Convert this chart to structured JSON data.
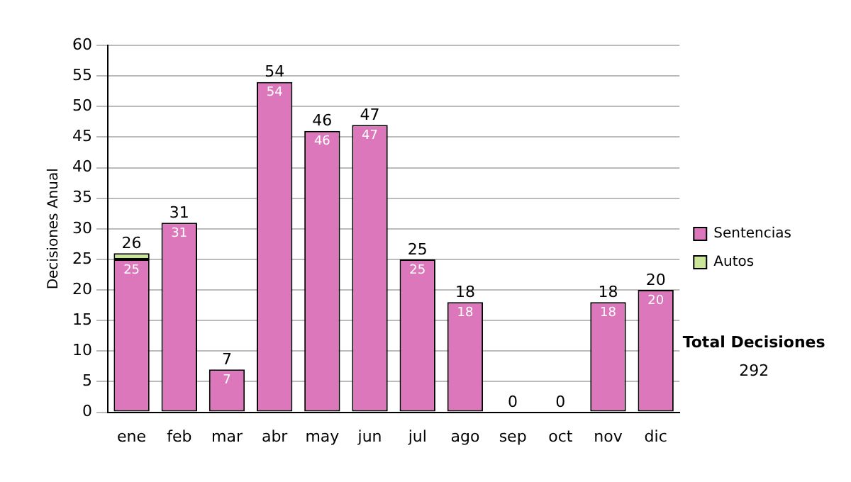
{
  "chart_data": {
    "type": "bar",
    "ylabel": "Decisiones Anual",
    "categories": [
      "ene",
      "feb",
      "mar",
      "abr",
      "may",
      "jun",
      "jul",
      "ago",
      "sep",
      "oct",
      "nov",
      "dic"
    ],
    "stacked": true,
    "series": [
      {
        "name": "Sentencias",
        "color": "#dd77bb",
        "values": [
          25,
          31,
          7,
          54,
          46,
          47,
          25,
          18,
          0,
          0,
          18,
          20
        ],
        "value_labels": [
          "25",
          "31",
          "7",
          "54",
          "46",
          "47",
          "25",
          "18",
          null,
          null,
          "18",
          "20"
        ]
      },
      {
        "name": "Autos",
        "color": "#cce699",
        "values": [
          1,
          0,
          0,
          0,
          0,
          0,
          0,
          0,
          0,
          0,
          0,
          0
        ]
      }
    ],
    "totals": [
      "26",
      "31",
      "7",
      "54",
      "46",
      "47",
      "25",
      "18",
      "0",
      "0",
      "18",
      "20"
    ],
    "ylim": [
      0,
      60
    ],
    "yticks": [
      0,
      5,
      10,
      15,
      20,
      25,
      30,
      35,
      40,
      45,
      50,
      55,
      60
    ],
    "grid": "y",
    "legend": "right",
    "annotations": [
      "Total Decisiones",
      "292"
    ]
  }
}
